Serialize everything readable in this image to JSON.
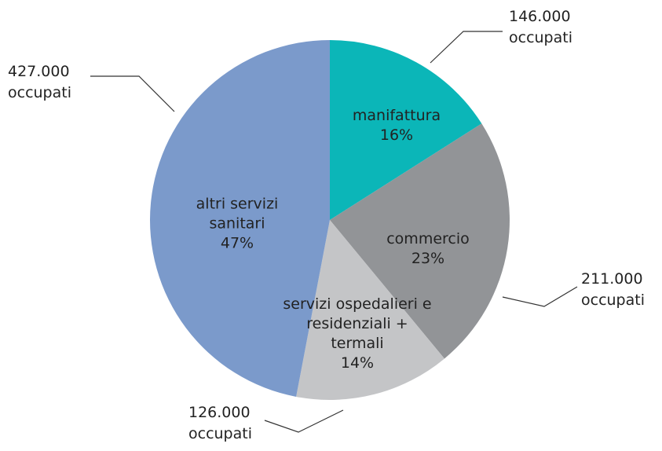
{
  "chart_data": {
    "type": "pie",
    "categories": [
      "manifattura",
      "commercio",
      "servizi ospedalieri e residenziali + termali",
      "altri servizi sanitari"
    ],
    "values": [
      16,
      23,
      14,
      47
    ],
    "value_labels": [
      "16%",
      "23%",
      "14%",
      "47%"
    ],
    "colors": [
      "#0bb6b8",
      "#929497",
      "#c4c5c7",
      "#7b9acb"
    ],
    "employed": [
      146000,
      211000,
      126000,
      427000
    ],
    "employed_labels": [
      "146.000 occupati",
      "211.000 occupati",
      "126.000 occupati",
      "427.000 occupati"
    ]
  }
}
